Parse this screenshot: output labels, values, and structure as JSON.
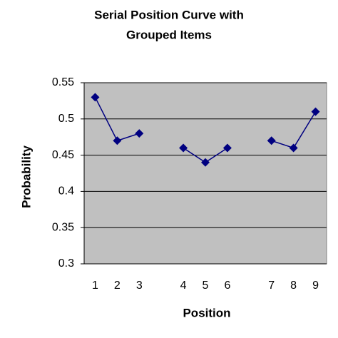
{
  "chart_data": {
    "type": "line",
    "title": [
      "Serial Position Curve with",
      "Grouped Items"
    ],
    "x_label": "Position",
    "y_label": "Probability",
    "categories": [
      "1",
      "2",
      "3",
      null,
      "4",
      "5",
      "6",
      null,
      "7",
      "8",
      "9"
    ],
    "values": [
      0.53,
      0.47,
      0.48,
      null,
      0.46,
      0.44,
      0.46,
      null,
      0.47,
      0.46,
      0.51
    ],
    "color": "#000080",
    "ylim": [
      0.3,
      0.55
    ],
    "yticks": [
      0.3,
      0.35,
      0.4,
      0.45,
      0.5,
      0.55
    ],
    "grid": true
  }
}
